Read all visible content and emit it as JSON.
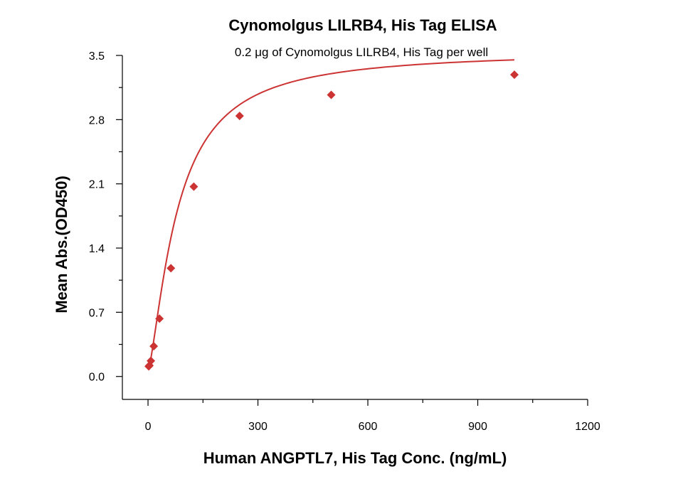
{
  "chart_data": {
    "type": "scatter",
    "title": "Cynomolgus LILRB4, His Tag ELISA",
    "subtitle": "0.2 μg of Cynomolgus LILRB4, His Tag per well",
    "xlabel": "Human ANGPTL7, His Tag Conc. (ng/mL)",
    "ylabel": "Mean Abs.(OD450)",
    "xlim": [
      -70,
      1200
    ],
    "ylim": [
      -0.25,
      3.5
    ],
    "x_ticks": [
      0,
      300,
      600,
      900,
      1200
    ],
    "y_ticks": [
      0.0,
      0.7,
      1.4,
      2.1,
      2.8,
      3.5
    ],
    "x_tick_labels": [
      "0",
      "300",
      "600",
      "900",
      "1200"
    ],
    "y_tick_labels": [
      "0.0",
      "0.7",
      "1.4",
      "2.1",
      "2.8",
      "3.5"
    ],
    "color": "#cc3333",
    "series": [
      {
        "marker": "diamond",
        "x": [
          1.95,
          3.9,
          7.8,
          15.6,
          31.25,
          62.5,
          125,
          250,
          500,
          1000
        ],
        "y": [
          0.11,
          0.12,
          0.17,
          0.33,
          0.63,
          1.18,
          2.07,
          2.84,
          3.07,
          3.29
        ]
      }
    ],
    "fit_curve": {
      "type": "4PL",
      "bottom": 0.07,
      "top": 3.55,
      "ec50": 80,
      "hill": 1.4
    },
    "grid": false,
    "legend": "none"
  }
}
